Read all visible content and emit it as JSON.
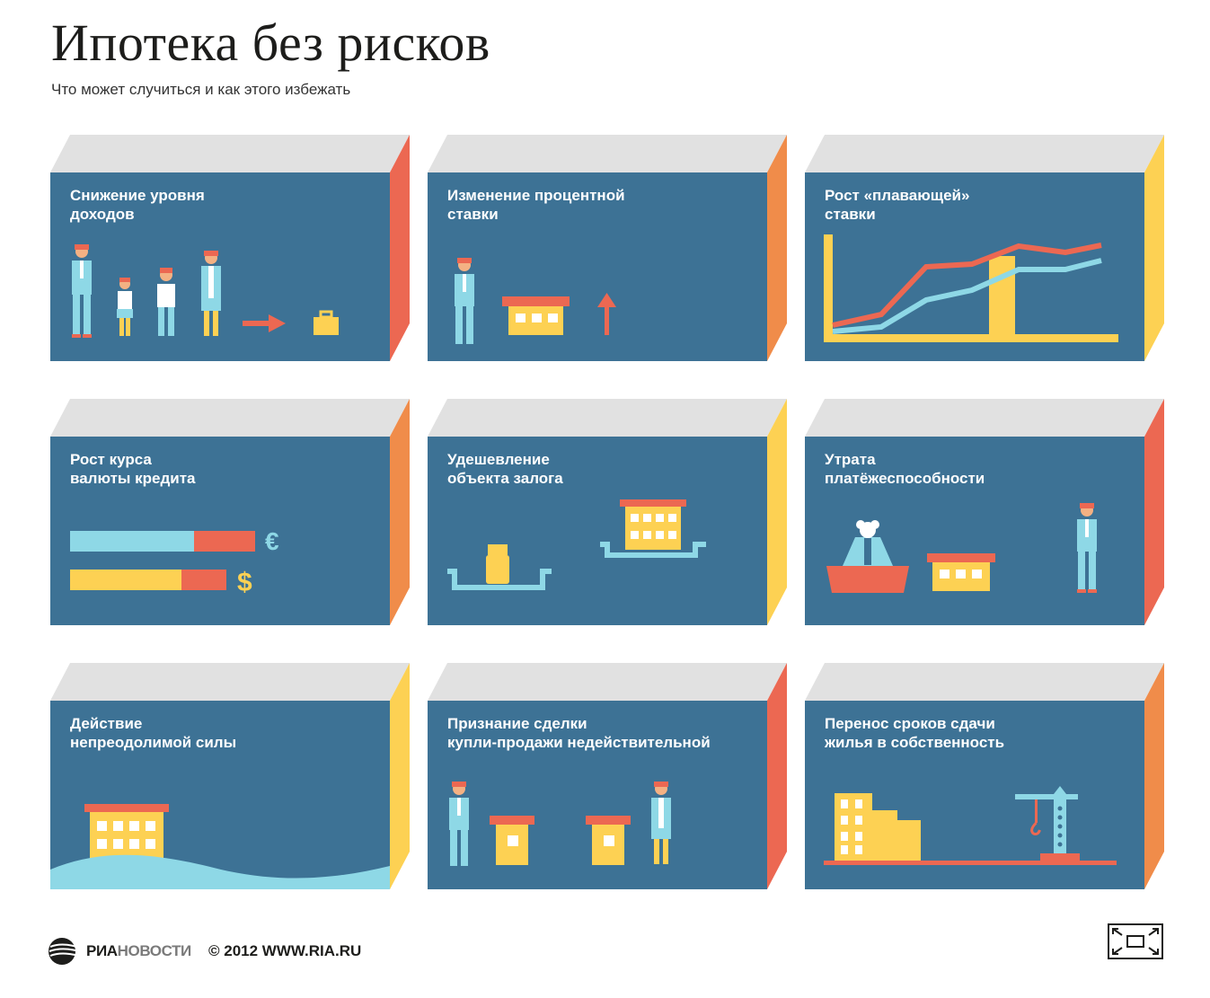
{
  "header": {
    "title": "Ипотека без рисков",
    "subtitle": "Что может случиться и как этого избежать"
  },
  "cards": [
    {
      "label": "Снижение уровня\nдоходов",
      "accent": "#ec6852"
    },
    {
      "label": "Изменение процентной\nставки",
      "accent": "#f08c4a"
    },
    {
      "label": "Рост «плавающей»\nставки",
      "accent": "#fdd153"
    },
    {
      "label": "Рост курса\nвалюты кредита",
      "accent": "#f08c4a",
      "currency": {
        "euro": "€",
        "dollar": "$"
      }
    },
    {
      "label": "Удешевление\nобъекта залога",
      "accent": "#fdd153"
    },
    {
      "label": "Утрата\nплатёжеспособности",
      "accent": "#ec6852"
    },
    {
      "label": "Действие\nнепреодолимой силы",
      "accent": "#fdd153"
    },
    {
      "label": "Признание сделки\nкупли-продажи недействительной",
      "accent": "#ec6852"
    },
    {
      "label": "Перенос сроков сдачи\nжилья в собственность",
      "accent": "#f08c4a"
    }
  ],
  "footer": {
    "brand_ria": "РИА",
    "brand_novosti": "НОВОСТИ",
    "copyright": "© 2012 WWW.RIA.RU"
  },
  "colors": {
    "card_face": "#3d7295",
    "card_top": "#e1e1e1",
    "red": "#ec6852",
    "orange": "#f08c4a",
    "yellow": "#fdd153",
    "light_blue": "#8ed8e6"
  }
}
